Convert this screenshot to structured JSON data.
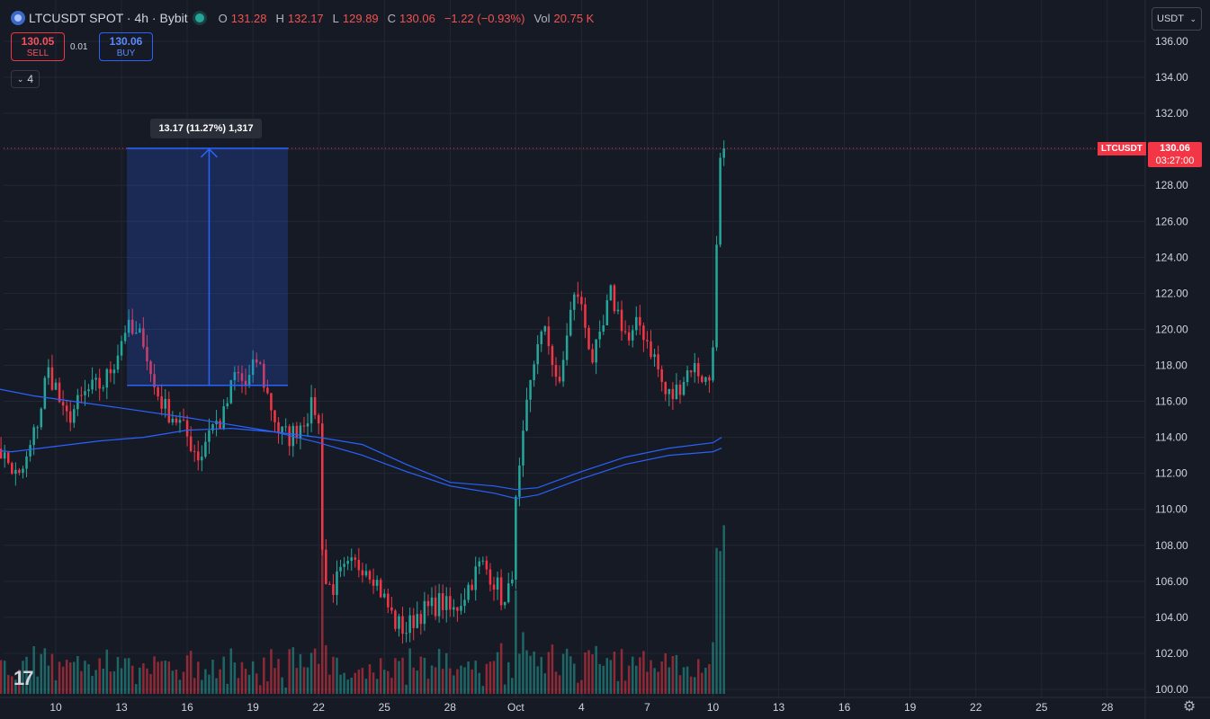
{
  "header": {
    "title": "LTCUSDT SPOT · 4h · Bybit",
    "ohlc": [
      {
        "key": "O",
        "value": "131.28"
      },
      {
        "key": "H",
        "value": "132.17"
      },
      {
        "key": "L",
        "value": "129.89"
      },
      {
        "key": "C",
        "value": "130.06"
      }
    ],
    "change": "−1.22 (−0.93%)",
    "vol_key": "Vol",
    "vol_value": "20.75 K"
  },
  "trade": {
    "sell_price": "130.05",
    "sell_label": "SELL",
    "spread": "0.01",
    "buy_price": "130.06",
    "buy_label": "BUY"
  },
  "indicators_count": "4",
  "currency": "USDT",
  "logo": "17",
  "last_price": {
    "symbol": "LTCUSDT",
    "price": "130.06",
    "countdown": "03:27:00"
  },
  "measure": {
    "label": "13.17 (11.27%) 1,317",
    "from": 116.89,
    "to": 130.06
  },
  "colors": {
    "up": "#26a69a",
    "down": "#f23645",
    "ma": "#2962ff",
    "measure": "#2962ff",
    "background": "#161a25",
    "grid": "#232733",
    "axis_text": "#d1d4dc"
  },
  "chart_data": {
    "type": "candlestick",
    "x_tick_labels": [
      "10",
      "13",
      "16",
      "19",
      "22",
      "25",
      "28",
      "Oct",
      "4",
      "7",
      "10",
      "13",
      "16",
      "19",
      "22",
      "25",
      "28"
    ],
    "y_tick_labels": [
      "100.00",
      "102.00",
      "104.00",
      "106.00",
      "108.00",
      "110.00",
      "112.00",
      "114.00",
      "116.00",
      "118.00",
      "120.00",
      "122.00",
      "124.00",
      "126.00",
      "128.00",
      "130.00",
      "132.00",
      "134.00",
      "136.00"
    ],
    "ylim": [
      99.6,
      136.8
    ],
    "price_anchors": [
      {
        "day": 7.0,
        "price": 114.5
      },
      {
        "day": 7.5,
        "price": 113.2
      },
      {
        "day": 8.3,
        "price": 111.6
      },
      {
        "day": 8.7,
        "price": 112.8
      },
      {
        "day": 9.3,
        "price": 115.5
      },
      {
        "day": 9.6,
        "price": 117.8
      },
      {
        "day": 10.0,
        "price": 116.8
      },
      {
        "day": 10.4,
        "price": 114.9
      },
      {
        "day": 11.0,
        "price": 115.8
      },
      {
        "day": 11.4,
        "price": 116.5
      },
      {
        "day": 12.2,
        "price": 117.0
      },
      {
        "day": 12.7,
        "price": 118.3
      },
      {
        "day": 13.2,
        "price": 120.2
      },
      {
        "day": 13.6,
        "price": 119.5
      },
      {
        "day": 14.0,
        "price": 119.6
      },
      {
        "day": 14.4,
        "price": 117.0
      },
      {
        "day": 15.0,
        "price": 115.6
      },
      {
        "day": 15.6,
        "price": 114.9
      },
      {
        "day": 16.2,
        "price": 113.6
      },
      {
        "day": 16.6,
        "price": 112.8
      },
      {
        "day": 17.0,
        "price": 114.6
      },
      {
        "day": 17.6,
        "price": 114.9
      },
      {
        "day": 18.2,
        "price": 117.6
      },
      {
        "day": 18.7,
        "price": 116.8
      },
      {
        "day": 19.2,
        "price": 118.4
      },
      {
        "day": 19.7,
        "price": 116.2
      },
      {
        "day": 20.2,
        "price": 114.3
      },
      {
        "day": 20.7,
        "price": 114.0
      },
      {
        "day": 21.3,
        "price": 115.0
      },
      {
        "day": 21.8,
        "price": 115.8
      },
      {
        "day": 22.0,
        "price": 114.6
      },
      {
        "day": 22.1,
        "price": 110.0
      },
      {
        "day": 22.25,
        "price": 106.0
      },
      {
        "day": 22.6,
        "price": 105.6
      },
      {
        "day": 23.0,
        "price": 106.3
      },
      {
        "day": 23.5,
        "price": 106.8
      },
      {
        "day": 24.1,
        "price": 107.0
      },
      {
        "day": 24.5,
        "price": 106.4
      },
      {
        "day": 25.0,
        "price": 105.0
      },
      {
        "day": 25.5,
        "price": 103.7
      },
      {
        "day": 26.0,
        "price": 103.3
      },
      {
        "day": 26.5,
        "price": 104.2
      },
      {
        "day": 27.1,
        "price": 104.5
      },
      {
        "day": 27.6,
        "price": 104.9
      },
      {
        "day": 28.1,
        "price": 104.2
      },
      {
        "day": 28.6,
        "price": 105.2
      },
      {
        "day": 29.0,
        "price": 106.1
      },
      {
        "day": 29.4,
        "price": 107.0
      },
      {
        "day": 29.8,
        "price": 106.5
      },
      {
        "day": 30.2,
        "price": 105.6
      },
      {
        "day": 30.5,
        "price": 104.6
      },
      {
        "day": 30.8,
        "price": 106.0
      },
      {
        "day": 31.0,
        "price": 110.2
      },
      {
        "day": 31.5,
        "price": 115.5
      },
      {
        "day": 32.0,
        "price": 119.5
      },
      {
        "day": 32.4,
        "price": 119.7
      },
      {
        "day": 32.7,
        "price": 118.2
      },
      {
        "day": 33.0,
        "price": 116.6
      },
      {
        "day": 33.4,
        "price": 120.5
      },
      {
        "day": 33.8,
        "price": 122.2
      },
      {
        "day": 34.2,
        "price": 120.0
      },
      {
        "day": 34.5,
        "price": 118.4
      },
      {
        "day": 34.9,
        "price": 119.4
      },
      {
        "day": 35.3,
        "price": 122.0
      },
      {
        "day": 35.7,
        "price": 120.8
      },
      {
        "day": 36.2,
        "price": 119.2
      },
      {
        "day": 36.6,
        "price": 120.4
      },
      {
        "day": 37.0,
        "price": 119.4
      },
      {
        "day": 37.4,
        "price": 118.2
      },
      {
        "day": 37.8,
        "price": 116.4
      },
      {
        "day": 38.2,
        "price": 116.3
      },
      {
        "day": 38.6,
        "price": 117.2
      },
      {
        "day": 39.0,
        "price": 118.0
      },
      {
        "day": 39.4,
        "price": 117.6
      },
      {
        "day": 39.8,
        "price": 116.9
      },
      {
        "day": 40.0,
        "price": 119.0
      },
      {
        "day": 40.1,
        "price": 122.5
      },
      {
        "day": 40.2,
        "price": 125.8
      },
      {
        "day": 40.3,
        "price": 128.7
      },
      {
        "day": 40.4,
        "price": 131.2
      },
      {
        "day": 40.5,
        "price": 130.06
      }
    ],
    "ma_fast": [
      {
        "day": 6.9,
        "price": 116.8
      },
      {
        "day": 9.0,
        "price": 116.3
      },
      {
        "day": 12.0,
        "price": 115.8
      },
      {
        "day": 16.0,
        "price": 115.1
      },
      {
        "day": 20.0,
        "price": 114.3
      },
      {
        "day": 22.0,
        "price": 114.0
      },
      {
        "day": 24.0,
        "price": 113.6
      },
      {
        "day": 26.0,
        "price": 112.5
      },
      {
        "day": 28.0,
        "price": 111.5
      },
      {
        "day": 30.0,
        "price": 111.3
      },
      {
        "day": 31.0,
        "price": 111.1
      },
      {
        "day": 32.0,
        "price": 111.2
      },
      {
        "day": 34.0,
        "price": 112.1
      },
      {
        "day": 36.0,
        "price": 112.9
      },
      {
        "day": 38.0,
        "price": 113.4
      },
      {
        "day": 40.0,
        "price": 113.7
      },
      {
        "day": 40.4,
        "price": 114.0
      }
    ],
    "ma_slow": [
      {
        "day": 6.9,
        "price": 113.3
      },
      {
        "day": 8.0,
        "price": 113.2
      },
      {
        "day": 10.0,
        "price": 113.5
      },
      {
        "day": 12.0,
        "price": 113.8
      },
      {
        "day": 14.0,
        "price": 114.0
      },
      {
        "day": 16.0,
        "price": 114.4
      },
      {
        "day": 18.0,
        "price": 114.5
      },
      {
        "day": 20.0,
        "price": 114.3
      },
      {
        "day": 22.0,
        "price": 113.7
      },
      {
        "day": 24.0,
        "price": 113.0
      },
      {
        "day": 26.0,
        "price": 112.1
      },
      {
        "day": 28.0,
        "price": 111.3
      },
      {
        "day": 30.0,
        "price": 110.9
      },
      {
        "day": 31.0,
        "price": 110.6
      },
      {
        "day": 32.0,
        "price": 110.8
      },
      {
        "day": 34.0,
        "price": 111.7
      },
      {
        "day": 36.0,
        "price": 112.5
      },
      {
        "day": 38.0,
        "price": 113.0
      },
      {
        "day": 40.0,
        "price": 113.2
      },
      {
        "day": 40.4,
        "price": 113.4
      }
    ]
  }
}
